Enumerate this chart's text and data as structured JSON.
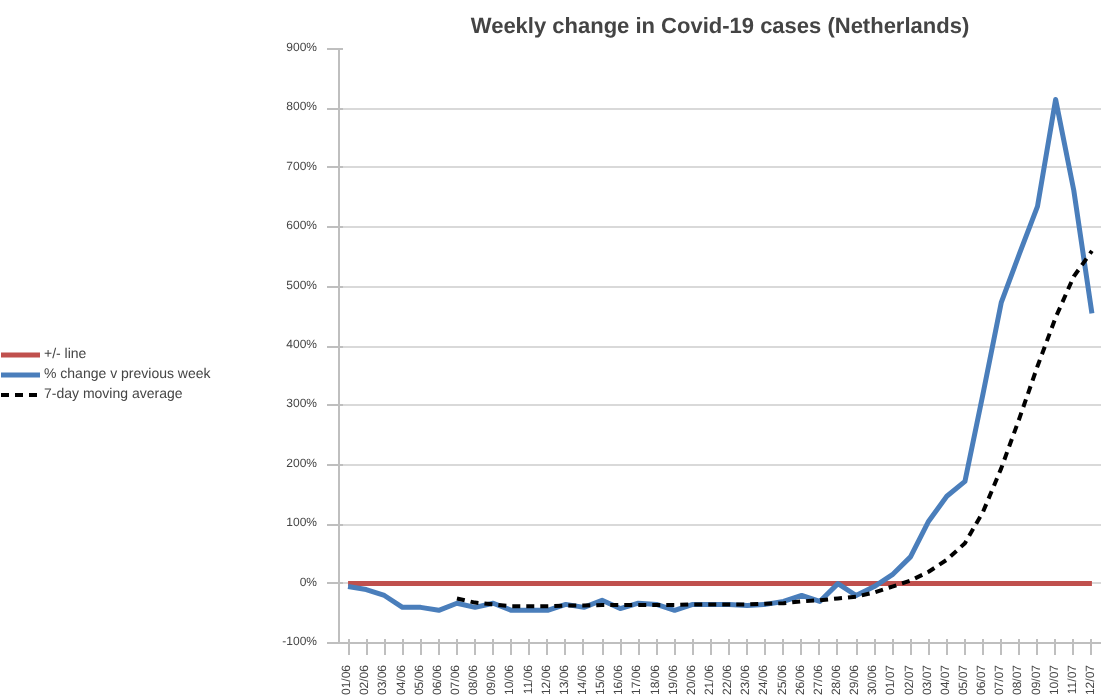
{
  "chart_data": {
    "type": "line",
    "title": "Weekly change in Covid-19 cases (Netherlands)",
    "categories": [
      "01/06",
      "02/06",
      "03/06",
      "04/06",
      "05/06",
      "06/06",
      "07/06",
      "08/06",
      "09/06",
      "10/06",
      "11/06",
      "12/06",
      "13/06",
      "14/06",
      "15/06",
      "16/06",
      "17/06",
      "18/06",
      "19/06",
      "20/06",
      "21/06",
      "22/06",
      "23/06",
      "24/06",
      "25/06",
      "26/06",
      "27/06",
      "28/06",
      "29/06",
      "30/06",
      "01/07",
      "02/07",
      "03/07",
      "04/07",
      "05/07",
      "06/07",
      "07/07",
      "08/07",
      "09/07",
      "10/07",
      "11/07",
      "12/07"
    ],
    "series": [
      {
        "name": "+/- line",
        "color": "#c0504d",
        "line_style": "solid",
        "values": [
          0,
          0,
          0,
          0,
          0,
          0,
          0,
          0,
          0,
          0,
          0,
          0,
          0,
          0,
          0,
          0,
          0,
          0,
          0,
          0,
          0,
          0,
          0,
          0,
          0,
          0,
          0,
          0,
          0,
          0,
          0,
          0,
          0,
          0,
          0,
          0,
          0,
          0,
          0,
          0,
          0,
          0
        ]
      },
      {
        "name": "% change v previous week",
        "color": "#4a7ebb",
        "line_style": "solid",
        "values": [
          -5,
          -10,
          -20,
          -40,
          -40,
          -45,
          -33,
          -40,
          -33,
          -45,
          -45,
          -45,
          -35,
          -40,
          -28,
          -42,
          -33,
          -35,
          -45,
          -35,
          -35,
          -35,
          -37,
          -35,
          -30,
          -20,
          -30,
          0,
          -20,
          -5,
          15,
          45,
          105,
          147,
          172,
          320,
          473,
          555,
          635,
          815,
          662,
          455
        ]
      },
      {
        "name": "7-day moving average",
        "color": "#000000",
        "line_style": "dashed",
        "values": [
          null,
          null,
          null,
          null,
          null,
          null,
          -25,
          -32,
          -35,
          -38,
          -38,
          -38,
          -37,
          -37,
          -36,
          -36,
          -36,
          -36,
          -36,
          -35,
          -35,
          -35,
          -35,
          -34,
          -33,
          -30,
          -28,
          -25,
          -22,
          -15,
          -5,
          5,
          20,
          40,
          68,
          121,
          194,
          278,
          366,
          448,
          517,
          560
        ]
      }
    ],
    "ylim": [
      -100,
      900
    ],
    "yticks": [
      {
        "value": -100,
        "label": "-100%"
      },
      {
        "value": 0,
        "label": "0%"
      },
      {
        "value": 100,
        "label": "100%"
      },
      {
        "value": 200,
        "label": "200%"
      },
      {
        "value": 300,
        "label": "300%"
      },
      {
        "value": 400,
        "label": "400%"
      },
      {
        "value": 500,
        "label": "500%"
      },
      {
        "value": 600,
        "label": "600%"
      },
      {
        "value": 700,
        "label": "700%"
      },
      {
        "value": 800,
        "label": "800%"
      },
      {
        "value": 900,
        "label": "900%"
      }
    ],
    "grid": "y",
    "legend": "left",
    "marker": "none"
  }
}
